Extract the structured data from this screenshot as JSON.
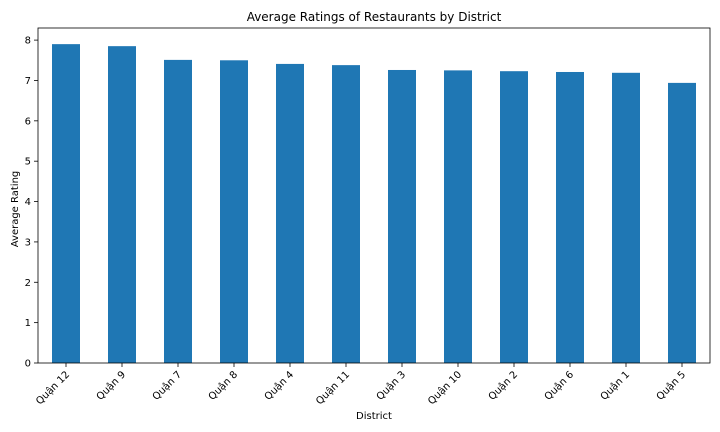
{
  "chart_data": {
    "type": "bar",
    "title": "Average Ratings of Restaurants by District",
    "xlabel": "District",
    "ylabel": "Average Rating",
    "categories": [
      "Quận 12",
      "Quận 9",
      "Quận 7",
      "Quận 8",
      "Quận 4",
      "Quận 11",
      "Quận 3",
      "Quận 10",
      "Quận 2",
      "Quận 6",
      "Quận 1",
      "Quận 5"
    ],
    "values": [
      7.9,
      7.85,
      7.51,
      7.5,
      7.41,
      7.38,
      7.26,
      7.25,
      7.23,
      7.21,
      7.19,
      6.94
    ],
    "ylim": [
      0,
      8.3
    ],
    "yticks": [
      0,
      1,
      2,
      3,
      4,
      5,
      6,
      7,
      8
    ],
    "grid": false,
    "legend": "none",
    "bar_color": "#1f77b4"
  }
}
